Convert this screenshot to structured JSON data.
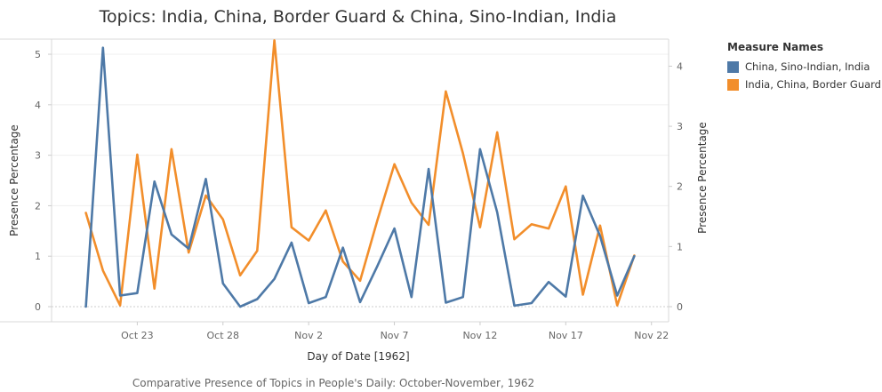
{
  "title": "Topics: India, China, Border Guard & China, Sino-Indian, India",
  "caption": "Comparative Presence of Topics in People's Daily: October-November, 1962",
  "legend": {
    "title": "Measure Names",
    "items": [
      {
        "label": "China, Sino-Indian, India",
        "color": "#4e79a7"
      },
      {
        "label": "India, China, Border Guard",
        "color": "#f28e2b"
      }
    ]
  },
  "chart_data": {
    "type": "line",
    "title": "Topics: India, China, Border Guard & China, Sino-Indian, India",
    "xlabel": "Day of Date [1962]",
    "ylabel_left": "Presence Percentage",
    "ylabel_right": "Presence Percentage",
    "x_ticks": [
      "Oct 23",
      "Oct 28",
      "Nov 2",
      "Nov 7",
      "Nov 12",
      "Nov 17",
      "Nov 22"
    ],
    "x_tick_dates": [
      "1962-10-23",
      "1962-10-28",
      "1962-11-02",
      "1962-11-07",
      "1962-11-12",
      "1962-11-17",
      "1962-11-22"
    ],
    "xlim": [
      "1962-10-18",
      "1962-11-23"
    ],
    "ylim_left": [
      0,
      5.3
    ],
    "ylim_right": [
      0,
      4.45
    ],
    "yticks_left": [
      0,
      1,
      2,
      3,
      4,
      5
    ],
    "yticks_right": [
      0,
      1,
      2,
      3,
      4
    ],
    "grid": true,
    "legend_position": "right",
    "series": [
      {
        "name": "China, Sino-Indian, India",
        "axis": "left",
        "color": "#4e79a7",
        "points": [
          [
            "1962-10-20",
            0.0
          ],
          [
            "1962-10-21",
            5.13
          ],
          [
            "1962-10-22",
            0.22
          ],
          [
            "1962-10-23",
            0.27
          ],
          [
            "1962-10-24",
            2.48
          ],
          [
            "1962-10-25",
            1.43
          ],
          [
            "1962-10-26",
            1.15
          ],
          [
            "1962-10-27",
            2.53
          ],
          [
            "1962-10-28",
            0.46
          ],
          [
            "1962-10-29",
            0.0
          ],
          [
            "1962-10-30",
            0.15
          ],
          [
            "1962-10-31",
            0.55
          ],
          [
            "1962-11-01",
            1.27
          ],
          [
            "1962-11-02",
            0.07
          ],
          [
            "1962-11-03",
            0.19
          ],
          [
            "1962-11-04",
            1.17
          ],
          [
            "1962-11-05",
            0.09
          ],
          [
            "1962-11-06",
            0.8
          ],
          [
            "1962-11-07",
            1.55
          ],
          [
            "1962-11-08",
            0.19
          ],
          [
            "1962-11-09",
            2.73
          ],
          [
            "1962-11-10",
            0.08
          ],
          [
            "1962-11-11",
            0.19
          ],
          [
            "1962-11-12",
            3.12
          ],
          [
            "1962-11-13",
            1.87
          ],
          [
            "1962-11-14",
            0.02
          ],
          [
            "1962-11-15",
            0.07
          ],
          [
            "1962-11-16",
            0.49
          ],
          [
            "1962-11-17",
            0.2
          ],
          [
            "1962-11-18",
            2.2
          ],
          [
            "1962-11-19",
            1.4
          ],
          [
            "1962-11-20",
            0.22
          ],
          [
            "1962-11-21",
            1.0
          ]
        ]
      },
      {
        "name": "India, China, Border Guard",
        "axis": "right",
        "color": "#f28e2b",
        "points": [
          [
            "1962-10-20",
            1.56
          ],
          [
            "1962-10-21",
            0.6
          ],
          [
            "1962-10-22",
            0.02
          ],
          [
            "1962-10-23",
            2.53
          ],
          [
            "1962-10-24",
            0.3
          ],
          [
            "1962-10-25",
            2.62
          ],
          [
            "1962-10-26",
            0.9
          ],
          [
            "1962-10-27",
            1.85
          ],
          [
            "1962-10-28",
            1.45
          ],
          [
            "1962-10-29",
            0.52
          ],
          [
            "1962-10-30",
            0.93
          ],
          [
            "1962-10-31",
            4.43
          ],
          [
            "1962-11-01",
            1.32
          ],
          [
            "1962-11-02",
            1.1
          ],
          [
            "1962-11-03",
            1.6
          ],
          [
            "1962-11-04",
            0.75
          ],
          [
            "1962-11-05",
            0.43
          ],
          [
            "1962-11-06",
            1.43
          ],
          [
            "1962-11-07",
            2.37
          ],
          [
            "1962-11-08",
            1.73
          ],
          [
            "1962-11-09",
            1.36
          ],
          [
            "1962-11-10",
            3.58
          ],
          [
            "1962-11-11",
            2.55
          ],
          [
            "1962-11-12",
            1.32
          ],
          [
            "1962-11-13",
            2.9
          ],
          [
            "1962-11-14",
            1.12
          ],
          [
            "1962-11-15",
            1.37
          ],
          [
            "1962-11-16",
            1.3
          ],
          [
            "1962-11-17",
            2.0
          ],
          [
            "1962-11-18",
            0.2
          ],
          [
            "1962-11-19",
            1.35
          ],
          [
            "1962-11-20",
            0.02
          ],
          [
            "1962-11-21",
            0.85
          ]
        ]
      }
    ]
  }
}
